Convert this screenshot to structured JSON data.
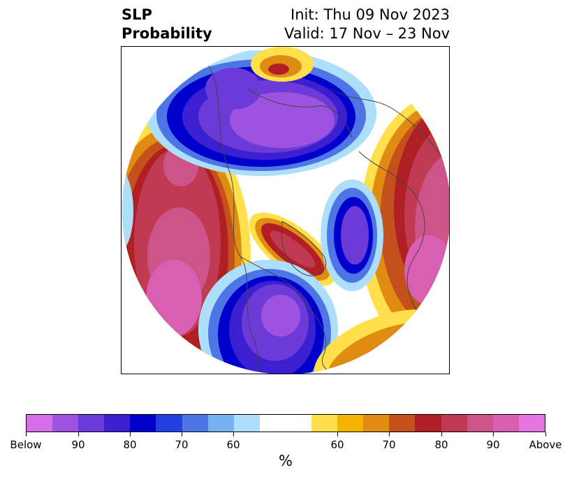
{
  "title": {
    "variable": "SLP",
    "subtitle": "Probability",
    "init": "Init: Thu 09 Nov 2023",
    "valid": "Valid: 17 Nov – 23 Nov"
  },
  "map": {
    "projection": "north-polar-stereographic",
    "theme": "sea-level-pressure tercile probability",
    "regions_below": [
      "Arctic/Siberia",
      "central North America",
      "North Atlantic"
    ],
    "regions_above": [
      "North Pacific",
      "Europe/Scandinavia",
      "Greenland/Baffin"
    ]
  },
  "colorbar": {
    "colors": [
      "#d46fe8",
      "#9d53e0",
      "#6c3ad6",
      "#3b1fd1",
      "#0000cd",
      "#2140de",
      "#4e75e5",
      "#77b1f0",
      "#addffb",
      "#ffffff",
      "#ffe04b",
      "#f2b400",
      "#e08b12",
      "#c4511b",
      "#b01f23",
      "#c03a52",
      "#cc5488",
      "#d95fb2",
      "#e475de"
    ],
    "tick_labels": [
      "Below",
      "90",
      "80",
      "70",
      "60",
      "60",
      "70",
      "80",
      "90",
      "Above"
    ],
    "unit_label": "%"
  }
}
